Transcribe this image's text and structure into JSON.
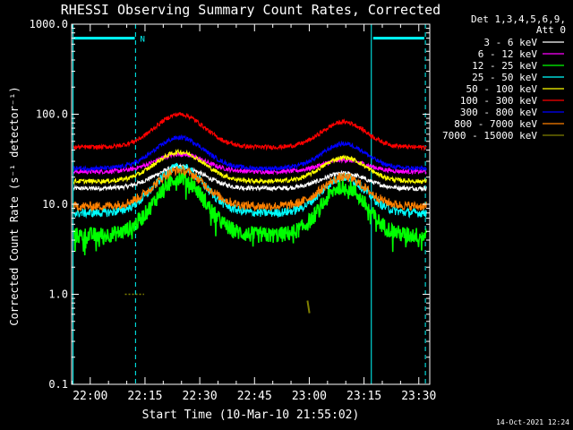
{
  "chart_data": {
    "type": "line",
    "title": "RHESSI Observing Summary Count Rates, Corrected",
    "xlabel": "Start Time (10-Mar-10 21:55:02)",
    "ylabel": "Corrected Count Rate (s⁻¹ detector⁻¹)",
    "yscale": "log",
    "ylim": [
      0.1,
      1000
    ],
    "xlim_minutes": [
      21.917,
      23.533
    ],
    "x_ticks": [
      "22:00",
      "22:15",
      "22:30",
      "22:45",
      "23:00",
      "23:15",
      "23:30"
    ],
    "x_tick_minutes": [
      0,
      15,
      30,
      45,
      60,
      75,
      90
    ],
    "y_ticks": [
      "0.1",
      "1.0",
      "10.0",
      "100.0",
      "1000.0"
    ],
    "y_tick_values": [
      0.1,
      1,
      10,
      100,
      1000
    ],
    "legend_header": [
      "Det 1,3,4,5,6,9,",
      "Att 0"
    ],
    "legend_position": "right",
    "series": [
      {
        "name": "3 - 6 keV",
        "color": "#ffffff",
        "base": 15,
        "peak1": 26,
        "peak2": 22
      },
      {
        "name": "6 - 12 keV",
        "color": "#ff00ff",
        "base": 23,
        "peak1": 36,
        "peak2": 31
      },
      {
        "name": "12 - 25 keV",
        "color": "#00ff00",
        "base": 4.5,
        "peak1": 20,
        "peak2": 16
      },
      {
        "name": "25 - 50 keV",
        "color": "#00ffff",
        "base": 8,
        "peak1": 26,
        "peak2": 20
      },
      {
        "name": "50 - 100 keV",
        "color": "#ffff00",
        "base": 18,
        "peak1": 38,
        "peak2": 33
      },
      {
        "name": "100 - 300 keV",
        "color": "#ff0000",
        "base": 43,
        "peak1": 100,
        "peak2": 82
      },
      {
        "name": "300 - 800 keV",
        "color": "#0000ff",
        "base": 25,
        "peak1": 55,
        "peak2": 47
      },
      {
        "name": "800 - 7000 keV",
        "color": "#ff8000",
        "base": 9.5,
        "peak1": 24,
        "peak2": 20
      },
      {
        "name": "7000 - 15000 keV",
        "color": "#808000",
        "base": null,
        "peak1": null,
        "peak2": null
      }
    ],
    "peak1_minute": 24.5,
    "peak2_minute": 69.5,
    "spikes_7000_15000": [
      {
        "minute_start": 9.5,
        "minute_end": 14.5,
        "value": 1.0
      },
      {
        "minute_start": 59.5,
        "minute_end": 59.8,
        "value": 0.85
      }
    ],
    "flag_N": {
      "label": "N",
      "color": "#00ffff",
      "start_minute": -4.5,
      "end_minute": 12.2,
      "level": 700
    },
    "flag_N2": {
      "color": "#00ffff",
      "start_minute": 77.5,
      "end_minute": 91.5,
      "level": 700
    },
    "night_boundaries_solid": [
      -4.7,
      77.0
    ],
    "night_boundaries_dashed": [
      12.4,
      91.8
    ],
    "timestamp": "14-Oct-2021 12:24"
  }
}
